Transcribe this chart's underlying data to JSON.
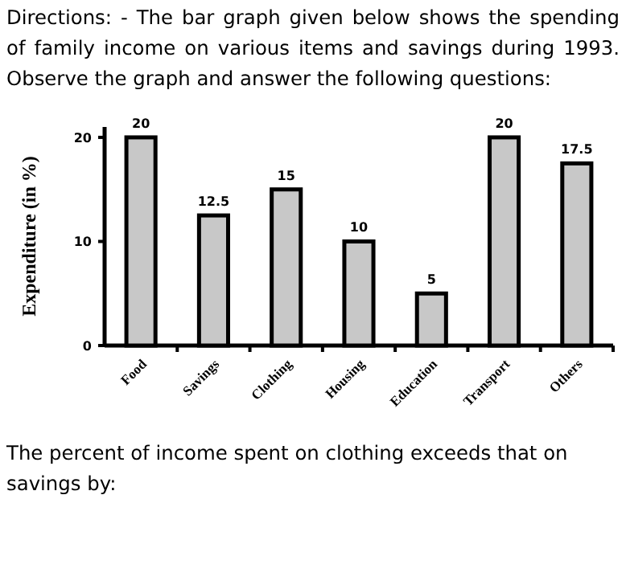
{
  "chart_data": {
    "type": "bar",
    "title": "Directions: -   The bar graph given below shows the spending of family income on various items and savings during 1993. Observe the graph and answer the following questions:",
    "ylabel": "Expenditure (in %)",
    "categories": [
      "Food",
      "Savings",
      "Clothing",
      "Housing",
      "Education",
      "Transport",
      "Others"
    ],
    "values": [
      20,
      12.5,
      15,
      10,
      5,
      20,
      17.5
    ],
    "color": "#c8c8c8",
    "ylim": [
      0,
      21
    ],
    "yticks": [
      0,
      10,
      20
    ],
    "data_labels": true,
    "annotations": [
      "The percent of income spent on clothing exceeds that on savings by:"
    ]
  }
}
